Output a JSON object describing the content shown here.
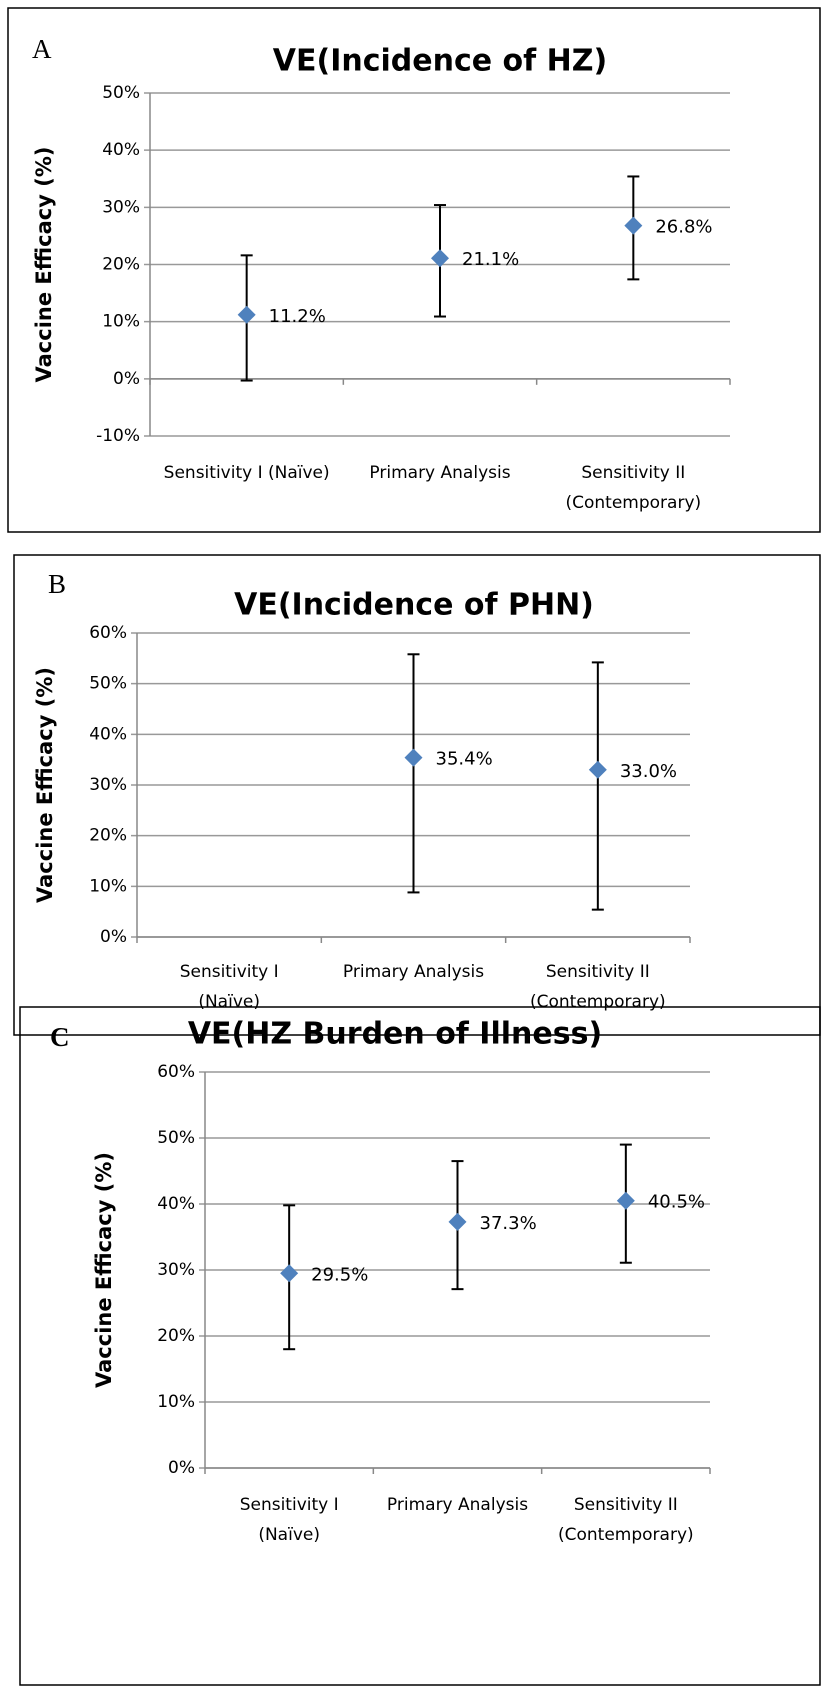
{
  "chart_data": [
    {
      "type": "errorbar",
      "label": "A",
      "title": "VE(Incidence of HZ)",
      "y_label": "Vaccine Efficacy (%)",
      "categories": [
        "Sensitivity I (Naïve)",
        "Primary Analysis",
        "Sensitivity II\n(Contemporary)"
      ],
      "values": [
        11.2,
        21.1,
        26.8
      ],
      "value_labels": [
        "11.2%",
        "21.1%",
        "26.8%"
      ],
      "lower": [
        -0.3,
        10.9,
        17.4
      ],
      "upper": [
        21.6,
        30.4,
        35.4
      ],
      "color": "#4f81bd",
      "ylim": [
        -10,
        50
      ],
      "yticks": [
        {
          "value": -10,
          "label": "-10%"
        },
        {
          "value": 0,
          "label": "0%"
        },
        {
          "value": 10,
          "label": "10%"
        },
        {
          "value": 20,
          "label": "20%"
        },
        {
          "value": 30,
          "label": "30%"
        },
        {
          "value": 40,
          "label": "40%"
        },
        {
          "value": 50,
          "label": "50%"
        }
      ],
      "grid": true
    },
    {
      "type": "errorbar",
      "label": "B",
      "title": "VE(Incidence of PHN)",
      "y_label": "Vaccine Efficacy (%)",
      "categories": [
        "Sensitivity I\n(Naïve)",
        "Primary Analysis",
        "Sensitivity II\n(Contemporary)"
      ],
      "values": [
        null,
        35.4,
        33.0
      ],
      "value_labels": [
        null,
        "35.4%",
        "33.0%"
      ],
      "lower": [
        null,
        8.8,
        5.4
      ],
      "upper": [
        null,
        55.8,
        54.2
      ],
      "color": "#4f81bd",
      "ylim": [
        0,
        60
      ],
      "yticks": [
        {
          "value": 0,
          "label": "0%"
        },
        {
          "value": 10,
          "label": "10%"
        },
        {
          "value": 20,
          "label": "20%"
        },
        {
          "value": 30,
          "label": "30%"
        },
        {
          "value": 40,
          "label": "40%"
        },
        {
          "value": 50,
          "label": "50%"
        },
        {
          "value": 60,
          "label": "60%"
        }
      ],
      "grid": true
    },
    {
      "type": "errorbar",
      "label": "C",
      "title": "VE(HZ Burden of Illness)",
      "y_label": "Vaccine Efficacy (%)",
      "categories": [
        "Sensitivity I\n(Naïve)",
        "Primary Analysis",
        "Sensitivity II\n(Contemporary)"
      ],
      "values": [
        29.5,
        37.3,
        40.5
      ],
      "value_labels": [
        "29.5%",
        "37.3%",
        "40.5%"
      ],
      "lower": [
        18.0,
        27.1,
        31.1
      ],
      "upper": [
        39.8,
        46.5,
        49.0
      ],
      "color": "#4f81bd",
      "ylim": [
        0,
        60
      ],
      "yticks": [
        {
          "value": 0,
          "label": "0%"
        },
        {
          "value": 10,
          "label": "10%"
        },
        {
          "value": 20,
          "label": "20%"
        },
        {
          "value": 30,
          "label": "30%"
        },
        {
          "value": 40,
          "label": "40%"
        },
        {
          "value": 50,
          "label": "50%"
        },
        {
          "value": 60,
          "label": "60%"
        }
      ],
      "grid": true
    }
  ]
}
